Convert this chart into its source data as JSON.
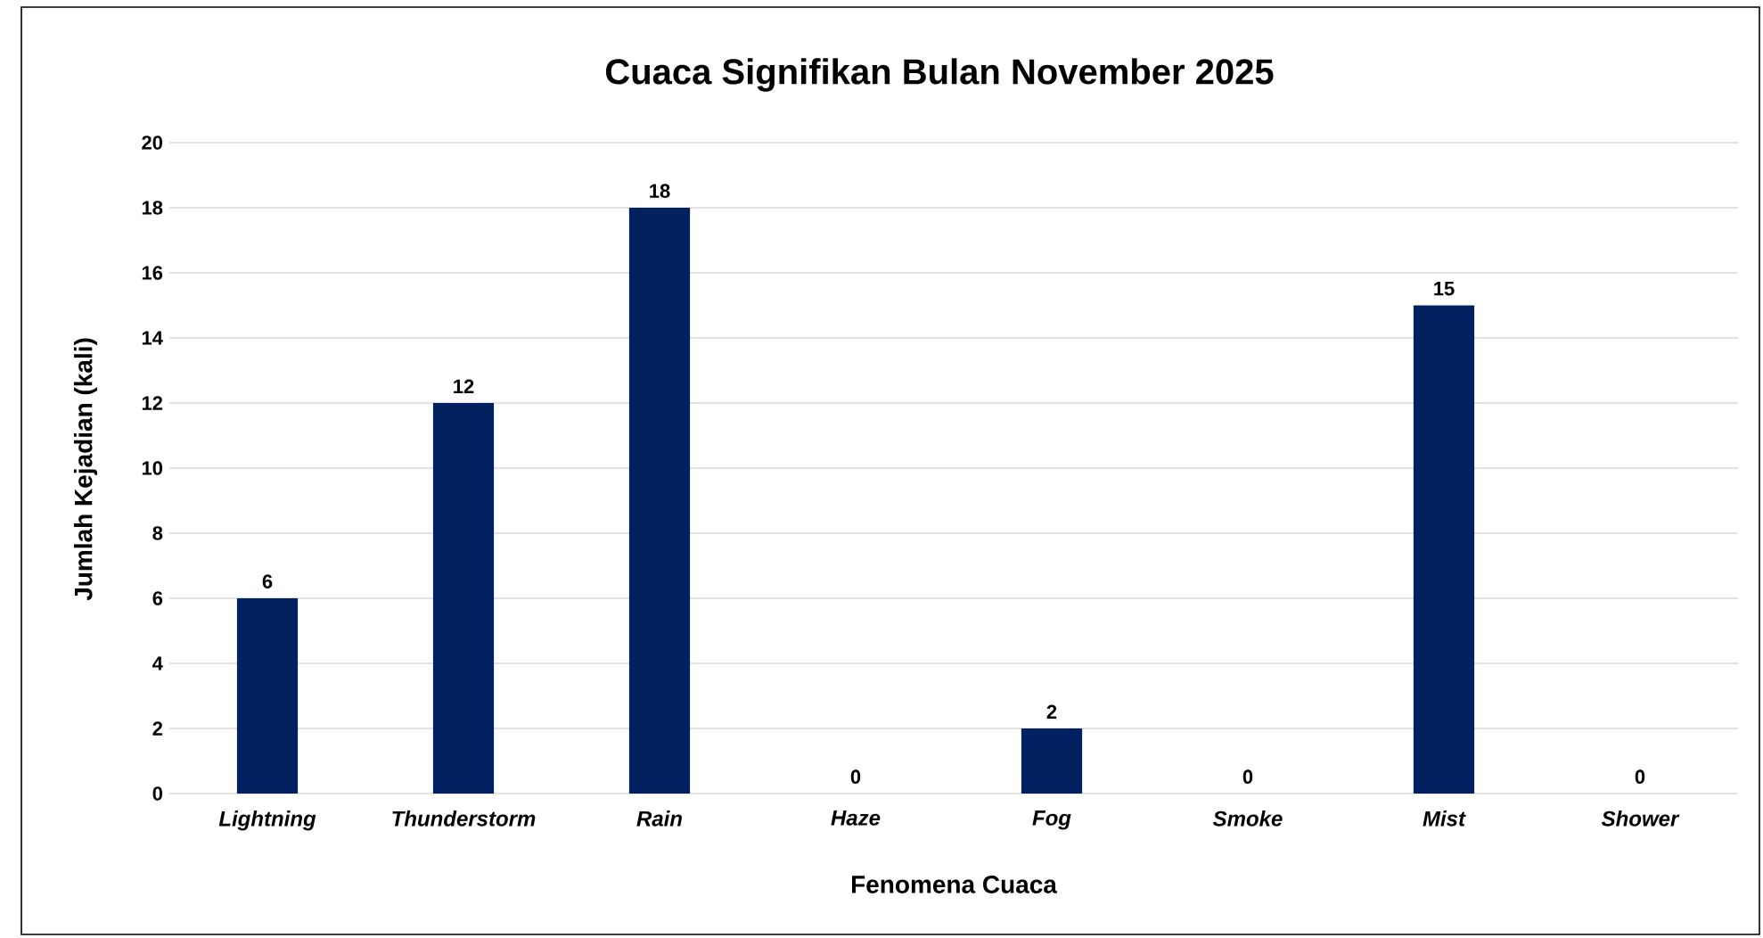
{
  "chart_data": {
    "type": "bar",
    "title": "Cuaca Signifikan Bulan November 2025",
    "xlabel": "Fenomena Cuaca",
    "ylabel": "Jumlah Kejadian (kali)",
    "categories": [
      "Lightning",
      "Thunderstorm",
      "Rain",
      "Haze",
      "Fog",
      "Smoke",
      "Mist",
      "Shower"
    ],
    "values": [
      6,
      12,
      18,
      0,
      2,
      0,
      15,
      0
    ],
    "color": "#002060",
    "ylim": [
      0,
      20
    ],
    "yticks": [
      0,
      2,
      4,
      6,
      8,
      10,
      12,
      14,
      16,
      18,
      20
    ],
    "grid": "y",
    "data_labels": true
  }
}
